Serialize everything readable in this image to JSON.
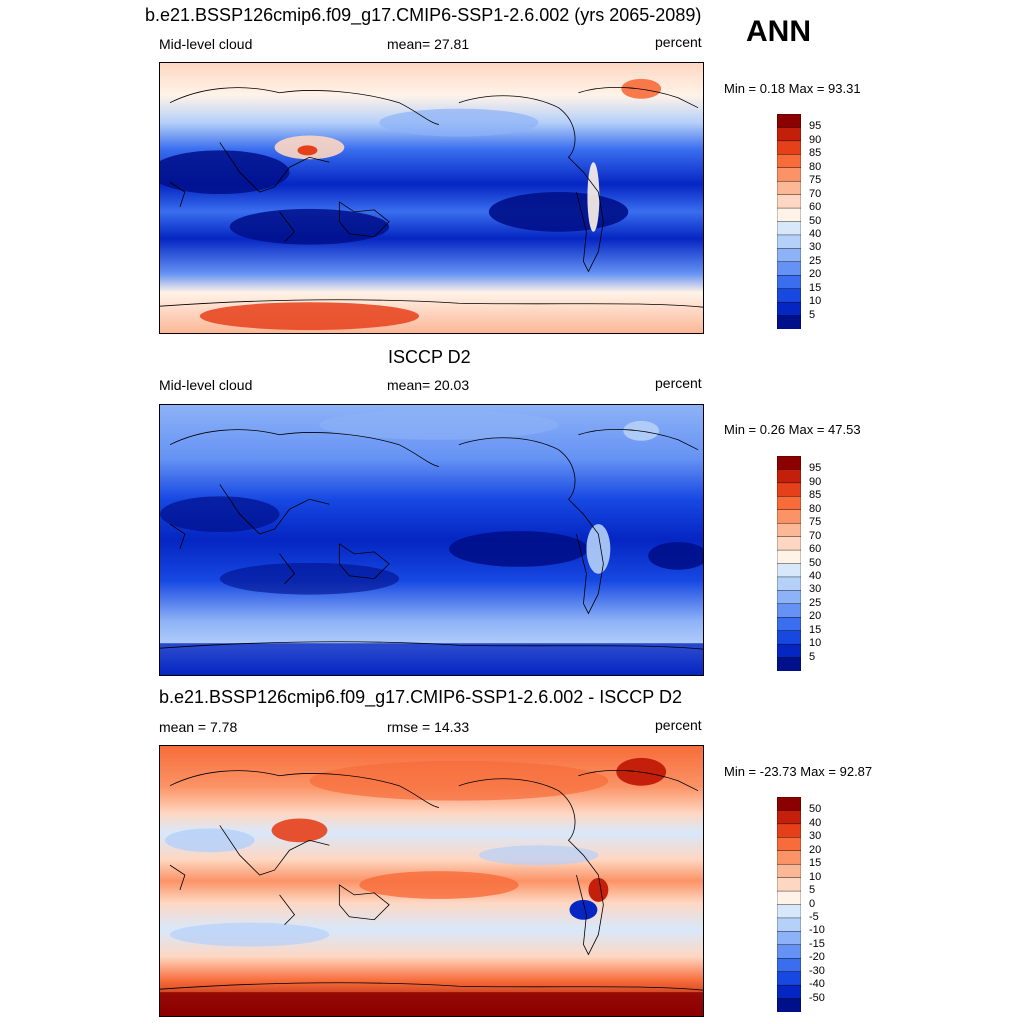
{
  "header": {
    "run_title": "b.e21.BSSP126cmip6.f09_g17.CMIP6-SSP1-2.6.002 (yrs 2065-2089)",
    "season": "ANN"
  },
  "panels": [
    {
      "title": "",
      "left_label": "Mid-level cloud",
      "center_label": "mean=  27.81",
      "right_label": "percent",
      "minmax": "Min =   0.18 Max =  93.31",
      "colorbar_labels": [
        "95",
        "90",
        "85",
        "80",
        "75",
        "70",
        "60",
        "50",
        "40",
        "30",
        "25",
        "20",
        "15",
        "10",
        "5"
      ],
      "colorbar_colors": [
        "#8b0000",
        "#c41f0b",
        "#e6401a",
        "#f76c3a",
        "#fb9366",
        "#fcb797",
        "#fed7c2",
        "#fff3e8",
        "#d8e8fb",
        "#b5d0f9",
        "#8db2f7",
        "#6592f4",
        "#3a6eef",
        "#1748e2",
        "#0526c2",
        "#000f8a"
      ],
      "map_alt": "model"
    },
    {
      "title": "ISCCP D2",
      "left_label": "Mid-level cloud",
      "center_label": "mean=  20.03",
      "right_label": "percent",
      "minmax": "Min =   0.26 Max =  47.53",
      "colorbar_labels": [
        "95",
        "90",
        "85",
        "80",
        "75",
        "70",
        "60",
        "50",
        "40",
        "30",
        "25",
        "20",
        "15",
        "10",
        "5"
      ],
      "colorbar_colors": [
        "#8b0000",
        "#c41f0b",
        "#e6401a",
        "#f76c3a",
        "#fb9366",
        "#fcb797",
        "#fed7c2",
        "#fff3e8",
        "#d8e8fb",
        "#b5d0f9",
        "#8db2f7",
        "#6592f4",
        "#3a6eef",
        "#1748e2",
        "#0526c2",
        "#000f8a"
      ],
      "map_alt": "obs"
    },
    {
      "title": "b.e21.BSSP126cmip6.f09_g17.CMIP6-SSP1-2.6.002 - ISCCP D2",
      "left_label": "mean =   7.78",
      "center_label": "rmse =  14.33",
      "right_label": "percent",
      "minmax": "Min = -23.73 Max =  92.87",
      "colorbar_labels": [
        "50",
        "40",
        "30",
        "20",
        "15",
        "10",
        "5",
        "0",
        "-5",
        "-10",
        "-15",
        "-20",
        "-30",
        "-40",
        "-50"
      ],
      "colorbar_colors": [
        "#8b0000",
        "#c41f0b",
        "#e6401a",
        "#f76c3a",
        "#fb9366",
        "#fcb797",
        "#fed7c2",
        "#fff3e8",
        "#d8e8fb",
        "#b5d0f9",
        "#8db2f7",
        "#6592f4",
        "#3a6eef",
        "#1748e2",
        "#0526c2",
        "#000f8a"
      ],
      "map_alt": "diff"
    }
  ]
}
